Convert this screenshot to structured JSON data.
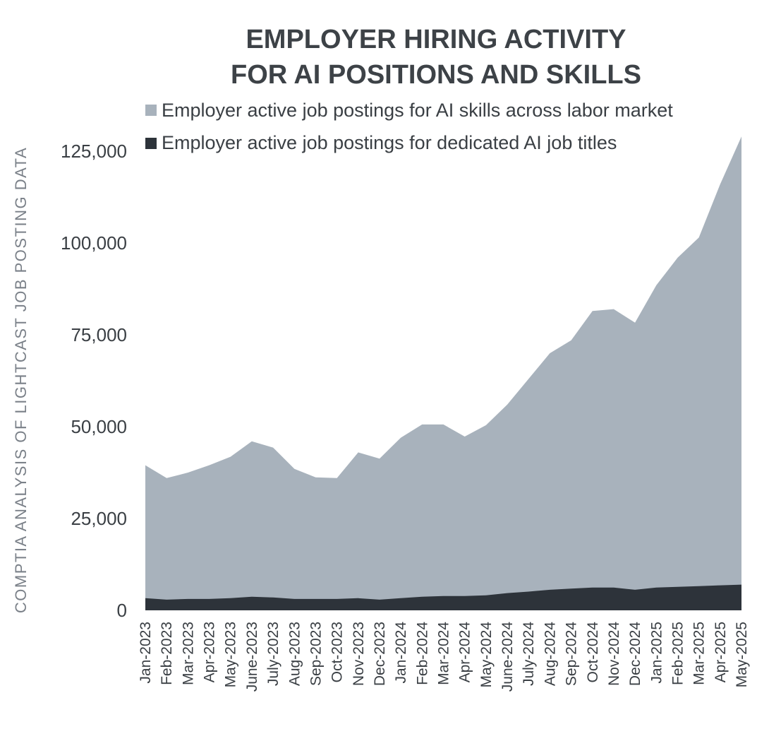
{
  "chart_data": {
    "type": "area",
    "title_lines": [
      "EMPLOYER HIRING ACTIVITY",
      "FOR AI POSITIONS AND SKILLS"
    ],
    "ylabel": "COMPTIA ANALYSIS OF LIGHTCAST JOB POSTING DATA",
    "xlabel": "",
    "ylim": [
      0,
      130000
    ],
    "yticks": [
      0,
      25000,
      50000,
      75000,
      100000,
      125000
    ],
    "ytick_labels": [
      "0",
      "25,000",
      "50,000",
      "75,000",
      "100,000",
      "125,000"
    ],
    "legend_position": "top",
    "grid": false,
    "categories": [
      "Jan-2023",
      "Feb-2023",
      "Mar-2023",
      "Apr-2023",
      "May-2023",
      "June-2023",
      "July-2023",
      "Aug-2023",
      "Sep-2023",
      "Oct-2023",
      "Nov-2023",
      "Dec-2023",
      "Jan-2024",
      "Feb-2024",
      "Mar-2024",
      "Apr-2024",
      "May-2024",
      "June-2024",
      "July-2024",
      "Aug-2024",
      "Sep-2024",
      "Oct-2024",
      "Nov-2024",
      "Dec-2024",
      "Jan-2025",
      "Feb-2025",
      "Mar-2025",
      "Apr-2025",
      "May-2025"
    ],
    "series": [
      {
        "name": "Employer active job postings for AI skills across labor market",
        "color": "#a8b2bc",
        "values": [
          39500,
          36000,
          37500,
          39500,
          41800,
          46000,
          44300,
          38500,
          36200,
          36000,
          43000,
          41300,
          47000,
          50600,
          50600,
          47300,
          50400,
          56000,
          63000,
          70000,
          73500,
          81500,
          82000,
          78300,
          88500,
          96000,
          101500,
          116000,
          129000
        ]
      },
      {
        "name": "Employer active job postings for dedicated AI job titles",
        "color": "#2d333a",
        "values": [
          3300,
          2900,
          3100,
          3100,
          3300,
          3700,
          3500,
          3100,
          3100,
          3100,
          3300,
          2900,
          3300,
          3700,
          3900,
          3900,
          4100,
          4700,
          5100,
          5600,
          5900,
          6200,
          6200,
          5600,
          6200,
          6400,
          6600,
          6800,
          7000
        ]
      }
    ]
  }
}
